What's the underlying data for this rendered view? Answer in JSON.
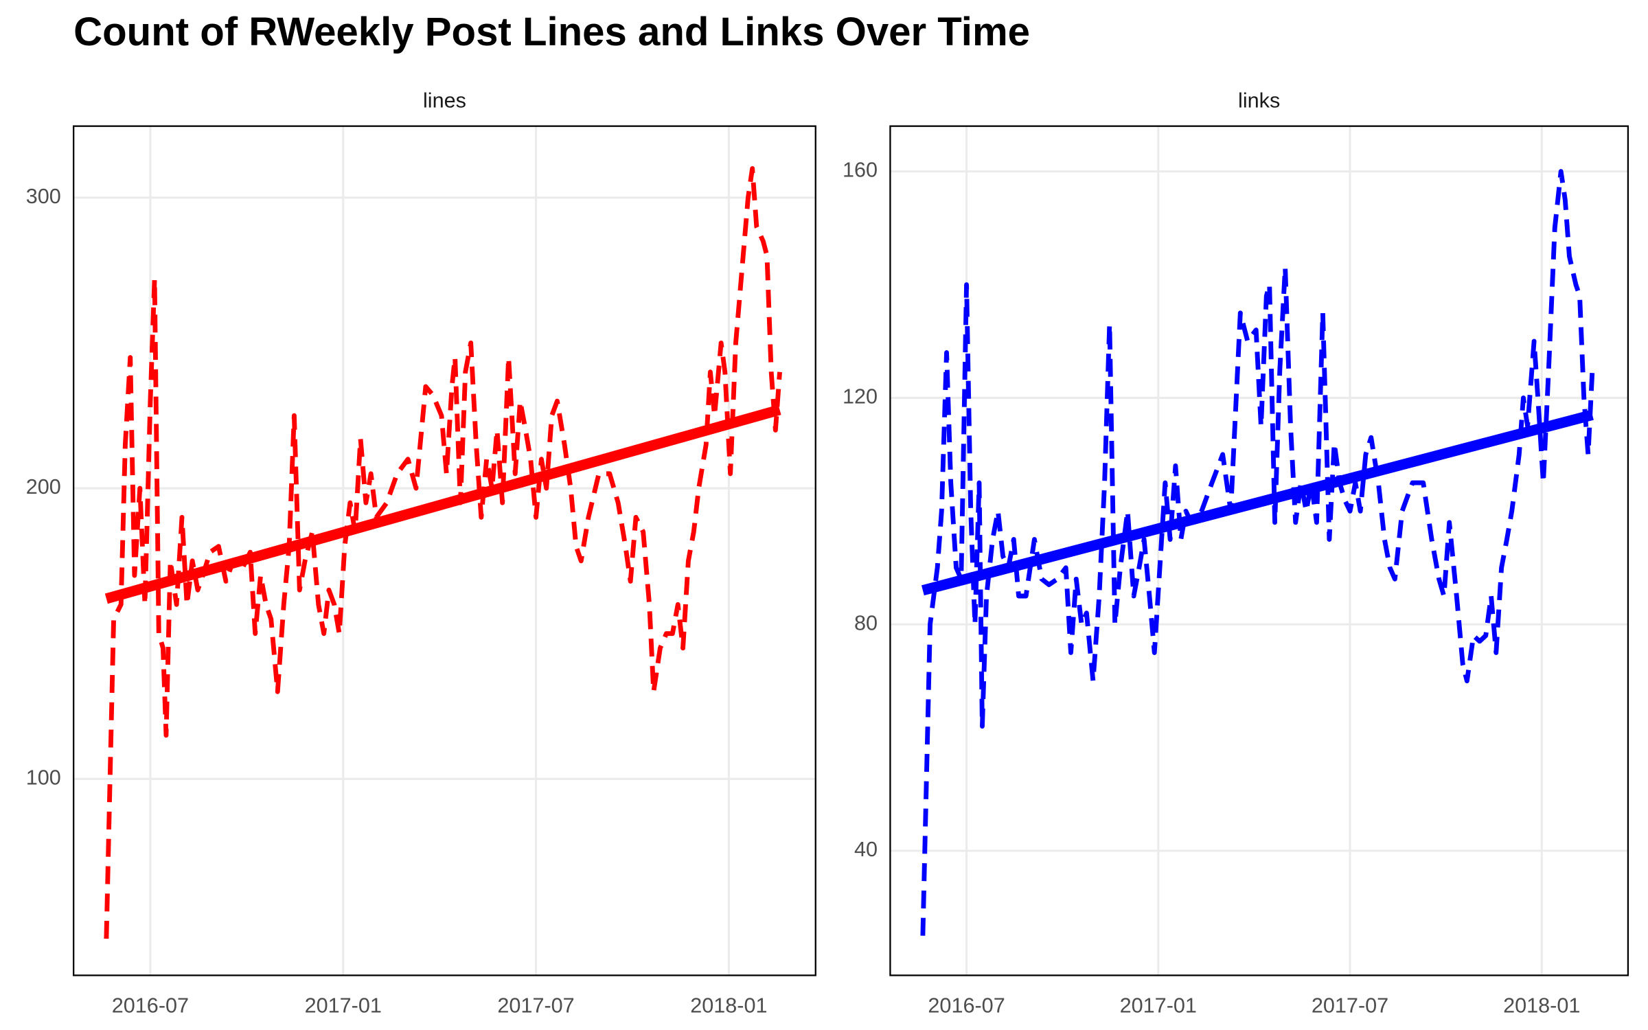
{
  "title": "Count of RWeekly Post Lines and Links Over Time",
  "chart_data": [
    {
      "type": "line",
      "title": "lines",
      "x": [
        2016.386,
        2016.405,
        2016.424,
        2016.435,
        2016.448,
        2016.459,
        2016.473,
        2016.486,
        2016.5,
        2016.511,
        2016.522,
        2016.533,
        2016.541,
        2016.552,
        2016.568,
        2016.582,
        2016.595,
        2016.609,
        2016.623,
        2016.636,
        2016.655,
        2016.677,
        2016.696,
        2016.715,
        2016.737,
        2016.759,
        2016.772,
        2016.786,
        2016.8,
        2016.813,
        2016.83,
        2016.846,
        2016.86,
        2016.873,
        2016.887,
        2016.901,
        2016.92,
        2016.936,
        2016.95,
        2016.963,
        2016.977,
        2016.99,
        2017.004,
        2017.018,
        2017.031,
        2017.045,
        2017.059,
        2017.072,
        2017.086,
        2017.113,
        2017.14,
        2017.168,
        2017.189,
        2017.214,
        2017.233,
        2017.255,
        2017.268,
        2017.282,
        2017.29,
        2017.304,
        2017.317,
        2017.331,
        2017.345,
        2017.358,
        2017.372,
        2017.386,
        2017.399,
        2017.413,
        2017.429,
        2017.446,
        2017.459,
        2017.473,
        2017.486,
        2017.5,
        2017.514,
        2017.527,
        2017.541,
        2017.555,
        2017.574,
        2017.59,
        2017.604,
        2017.617,
        2017.636,
        2017.663,
        2017.691,
        2017.713,
        2017.732,
        2017.745,
        2017.759,
        2017.778,
        2017.794,
        2017.805,
        2017.822,
        2017.838,
        2017.854,
        2017.868,
        2017.881,
        2017.895,
        2017.909,
        2017.922,
        2017.941,
        2017.952,
        2017.963,
        2017.98,
        2017.99,
        2018.004,
        2018.018,
        2018.034,
        2018.05,
        2018.061,
        2018.072,
        2018.089,
        2018.099,
        2018.11,
        2018.121,
        2018.132
      ],
      "series": [
        {
          "color": "#ff0000",
          "values": [
            45,
            155,
            160,
            215,
            245,
            170,
            200,
            160,
            230,
            272,
            150,
            145,
            115,
            175,
            160,
            190,
            160,
            175,
            165,
            170,
            178,
            180,
            168,
            175,
            172,
            178,
            150,
            170,
            160,
            155,
            130,
            160,
            180,
            225,
            165,
            175,
            185,
            160,
            150,
            165,
            160,
            150,
            180,
            195,
            185,
            217,
            195,
            205,
            190,
            195,
            205,
            210,
            200,
            235,
            232,
            225,
            205,
            235,
            245,
            195,
            240,
            250,
            215,
            190,
            210,
            200,
            220,
            195,
            245,
            205,
            230,
            220,
            210,
            190,
            210,
            200,
            225,
            230,
            215,
            200,
            180,
            175,
            190,
            205,
            205,
            195,
            180,
            168,
            190,
            185,
            160,
            130,
            145,
            150,
            150,
            160,
            145,
            175,
            185,
            200,
            215,
            240,
            225,
            250,
            240,
            205,
            250,
            275,
            300,
            310,
            290,
            285,
            280,
            240,
            220,
            240
          ]
        }
      ],
      "line_style": "dashed",
      "trend": {
        "x": [
          2016.386,
          2018.132
        ],
        "values": [
          162,
          227
        ],
        "color": "#ff0000"
      },
      "xlim": [
        2016.301,
        2018.225
      ],
      "xticks": [
        {
          "value": 2016.5,
          "label": "2016-07"
        },
        {
          "value": 2017.0,
          "label": "2017-01"
        },
        {
          "value": 2017.5,
          "label": "2017-07"
        },
        {
          "value": 2018.0,
          "label": "2018-01"
        }
      ],
      "ylim": [
        32.4,
        324.6
      ],
      "yticks": [
        100,
        200,
        300
      ],
      "grid": true
    },
    {
      "type": "line",
      "title": "links",
      "x": [
        2016.386,
        2016.405,
        2016.424,
        2016.435,
        2016.448,
        2016.459,
        2016.473,
        2016.486,
        2016.5,
        2016.511,
        2016.522,
        2016.533,
        2016.541,
        2016.552,
        2016.568,
        2016.582,
        2016.595,
        2016.609,
        2016.623,
        2016.636,
        2016.655,
        2016.677,
        2016.696,
        2016.715,
        2016.737,
        2016.759,
        2016.772,
        2016.786,
        2016.8,
        2016.813,
        2016.83,
        2016.846,
        2016.86,
        2016.873,
        2016.887,
        2016.901,
        2016.92,
        2016.936,
        2016.95,
        2016.963,
        2016.977,
        2016.99,
        2017.004,
        2017.018,
        2017.031,
        2017.045,
        2017.059,
        2017.072,
        2017.086,
        2017.113,
        2017.14,
        2017.168,
        2017.189,
        2017.214,
        2017.233,
        2017.255,
        2017.268,
        2017.282,
        2017.29,
        2017.304,
        2017.317,
        2017.331,
        2017.345,
        2017.358,
        2017.372,
        2017.386,
        2017.399,
        2017.413,
        2017.429,
        2017.446,
        2017.459,
        2017.473,
        2017.486,
        2017.5,
        2017.514,
        2017.527,
        2017.541,
        2017.555,
        2017.574,
        2017.59,
        2017.604,
        2017.617,
        2017.636,
        2017.663,
        2017.691,
        2017.713,
        2017.732,
        2017.745,
        2017.759,
        2017.778,
        2017.794,
        2017.805,
        2017.822,
        2017.838,
        2017.854,
        2017.868,
        2017.881,
        2017.895,
        2017.909,
        2017.922,
        2017.941,
        2017.952,
        2017.963,
        2017.98,
        2017.99,
        2018.004,
        2018.018,
        2018.034,
        2018.05,
        2018.061,
        2018.072,
        2018.089,
        2018.099,
        2018.11,
        2018.121,
        2018.132
      ],
      "series": [
        {
          "color": "#0000ff",
          "values": [
            25,
            80,
            90,
            100,
            128,
            105,
            90,
            88,
            140,
            100,
            80,
            105,
            62,
            85,
            95,
            100,
            92,
            90,
            95,
            85,
            85,
            95,
            88,
            87,
            88,
            90,
            75,
            88,
            80,
            82,
            70,
            85,
            105,
            133,
            80,
            90,
            100,
            85,
            90,
            95,
            85,
            75,
            90,
            105,
            95,
            108,
            95,
            100,
            98,
            100,
            105,
            110,
            100,
            135,
            130,
            132,
            115,
            138,
            140,
            98,
            125,
            143,
            115,
            98,
            105,
            100,
            105,
            98,
            135,
            95,
            112,
            105,
            102,
            100,
            105,
            100,
            110,
            113,
            105,
            95,
            90,
            88,
            100,
            105,
            105,
            95,
            88,
            85,
            98,
            85,
            73,
            70,
            78,
            77,
            78,
            85,
            75,
            90,
            95,
            100,
            110,
            120,
            115,
            130,
            120,
            105,
            125,
            150,
            160,
            155,
            145,
            140,
            138,
            120,
            110,
            125
          ]
        }
      ],
      "line_style": "dashed",
      "trend": {
        "x": [
          2016.386,
          2018.132
        ],
        "values": [
          86,
          117
        ],
        "color": "#0000ff"
      },
      "xlim": [
        2016.301,
        2018.225
      ],
      "xticks": [
        {
          "value": 2016.5,
          "label": "2016-07"
        },
        {
          "value": 2017.0,
          "label": "2017-01"
        },
        {
          "value": 2017.5,
          "label": "2017-07"
        },
        {
          "value": 2018.0,
          "label": "2018-01"
        }
      ],
      "ylim": [
        18,
        168
      ],
      "yticks": [
        40,
        80,
        120,
        160
      ],
      "grid": true
    }
  ]
}
